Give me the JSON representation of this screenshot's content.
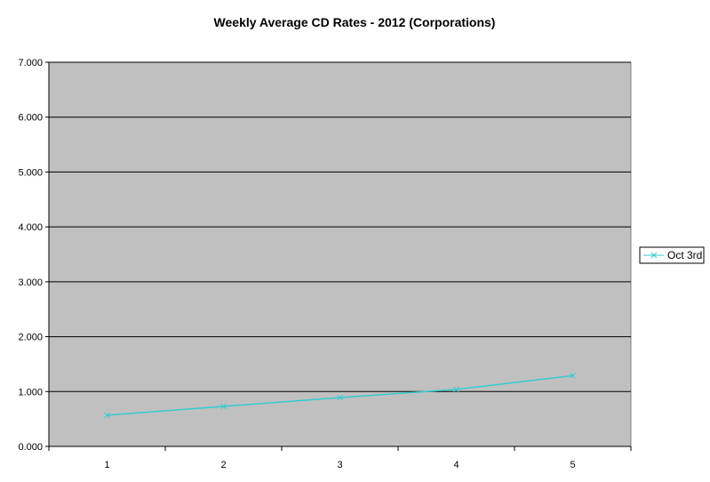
{
  "chart_data": {
    "type": "line",
    "title": "Weekly Average CD Rates - 2012 (Corporations)",
    "xlabel": "",
    "ylabel": "",
    "categories": [
      "1",
      "2",
      "3",
      "4",
      "5"
    ],
    "ylim": [
      0,
      7
    ],
    "yticks": [
      "0.000",
      "1.000",
      "2.000",
      "3.000",
      "4.000",
      "5.000",
      "6.000",
      "7.000"
    ],
    "grid": true,
    "legend_position": "right",
    "series": [
      {
        "name": "Oct 3rd",
        "values": [
          0.57,
          0.73,
          0.89,
          1.04,
          1.29
        ],
        "color": "#33CCCC",
        "marker": "x"
      }
    ],
    "colors": {
      "plot_background": "#C0C0C0",
      "gridline": "#000000",
      "axis": "#000000"
    }
  }
}
